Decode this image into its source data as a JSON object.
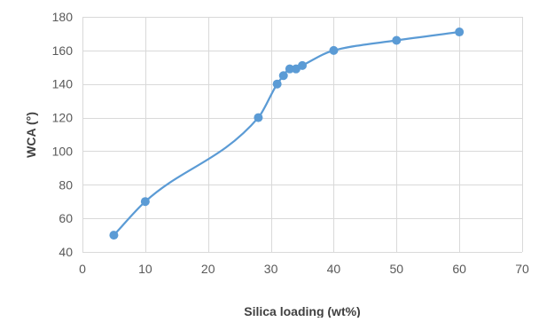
{
  "chart_data": {
    "type": "scatter",
    "title": "",
    "xlabel": "Silica loading (wt%)",
    "ylabel": "WCA (°)",
    "xlim": [
      0,
      70
    ],
    "ylim": [
      40,
      180
    ],
    "xticks": [
      0,
      10,
      20,
      30,
      40,
      50,
      60,
      70
    ],
    "yticks": [
      40,
      60,
      80,
      100,
      120,
      140,
      160,
      180
    ],
    "grid": true,
    "smoothed_line": true,
    "legend": "none",
    "colors": {
      "series": "#5b9bd5",
      "grid": "#d9d9d9",
      "tick_text": "#595959",
      "axis_title": "#404040"
    },
    "series": [
      {
        "x": [
          5,
          10,
          28,
          31,
          32,
          33,
          34,
          35,
          40,
          50,
          60
        ],
        "y": [
          50,
          70,
          120,
          140,
          145,
          149,
          149,
          151,
          160,
          166,
          171
        ]
      }
    ]
  }
}
